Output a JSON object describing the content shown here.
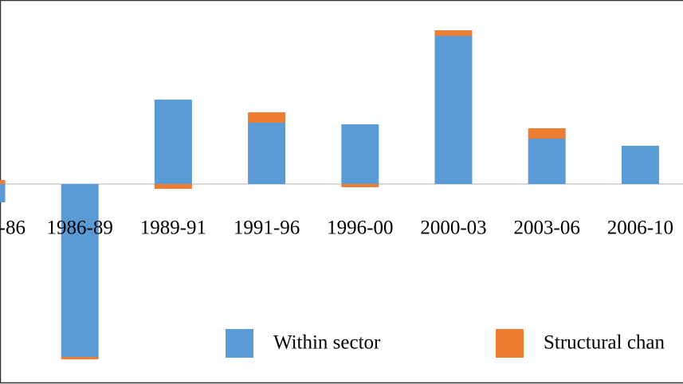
{
  "chart_data": {
    "type": "stacked_bar",
    "categories": [
      "-86",
      "1986-89",
      "1989-91",
      "1991-96",
      "1996-00",
      "2000-03",
      "2003-06",
      "2006-10"
    ],
    "series": [
      {
        "name": "Within sector",
        "color": "#5b9bd5",
        "values": [
          -2.3,
          -21.7,
          10.6,
          7.7,
          7.5,
          18.6,
          5.7,
          4.8
        ]
      },
      {
        "name": "Structural chan",
        "color": "#ed7d31",
        "values": [
          0.5,
          -0.3,
          -0.6,
          1.3,
          -0.4,
          0.7,
          1.3,
          0
        ]
      }
    ],
    "ylim": [
      -25.1,
      23.1
    ]
  }
}
